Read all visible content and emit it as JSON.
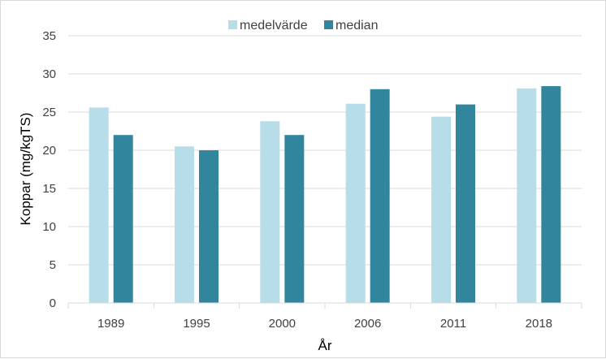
{
  "chart_data": {
    "type": "bar",
    "categories": [
      "1989",
      "1995",
      "2000",
      "2006",
      "2011",
      "2018"
    ],
    "series": [
      {
        "name": "medelvärde",
        "color": "#b7dde8",
        "values": [
          25.6,
          20.5,
          23.8,
          26.1,
          24.4,
          28.1
        ]
      },
      {
        "name": "median",
        "color": "#31859c",
        "values": [
          22.0,
          20.0,
          22.0,
          28.0,
          26.0,
          28.4
        ]
      }
    ],
    "title": "",
    "xlabel": "År",
    "ylabel": "Koppar (mg/kgTS)",
    "ylim": [
      0,
      35
    ],
    "yticks": [
      0,
      5,
      10,
      15,
      20,
      25,
      30,
      35
    ],
    "grid": true,
    "legend_position": "top-center",
    "gridline_color": "#d9d9d9"
  }
}
